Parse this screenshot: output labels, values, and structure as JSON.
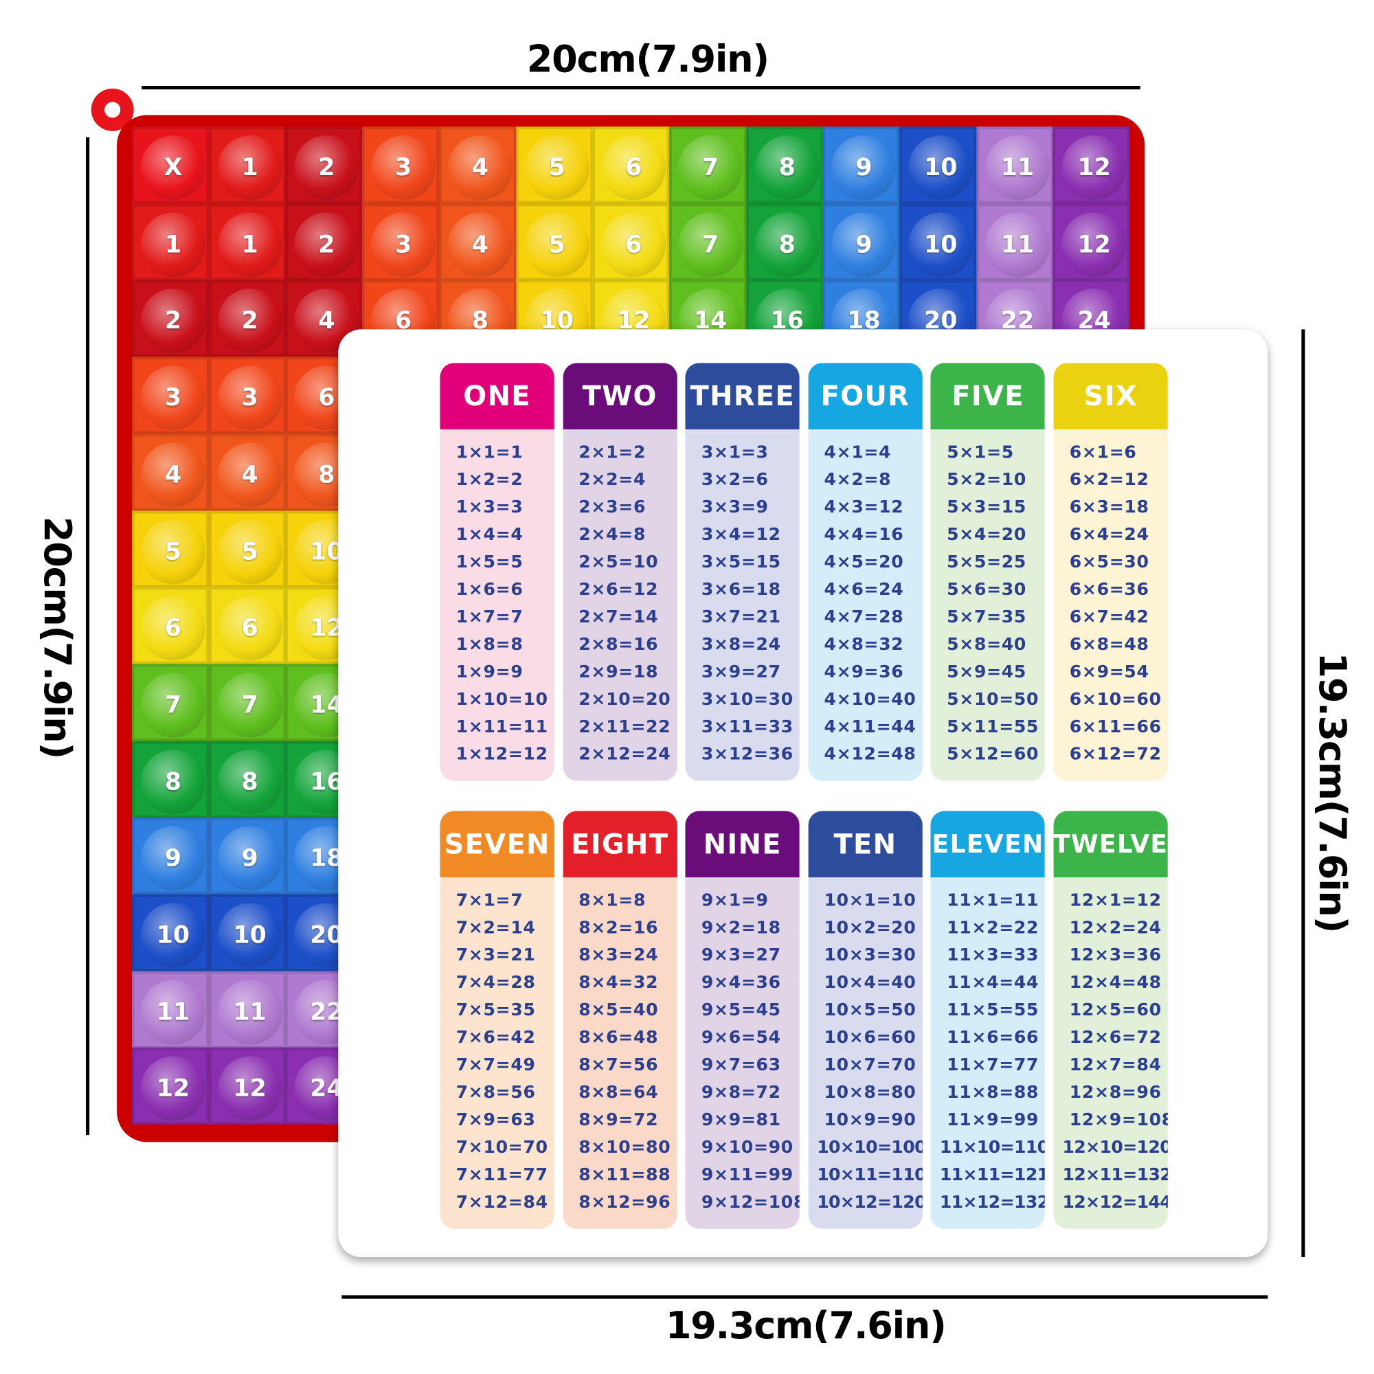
{
  "dimensions": {
    "top": "20cm(7.9in)",
    "left": "20cm(7.9in)",
    "right": "19.3cm(7.6in)",
    "bottom": "19.3cm(7.6in)"
  },
  "board": {
    "palette": [
      "#e8141c",
      "#e11a1a",
      "#c8101a",
      "#f0461a",
      "#f0561c",
      "#f5d20a",
      "#f3dc12",
      "#5fbf1e",
      "#14a33a",
      "#2f7fe0",
      "#1d4fc8",
      "#b07ad0",
      "#8a2fb0"
    ],
    "rows": [
      [
        "X",
        "1",
        "2",
        "3",
        "4",
        "5",
        "6",
        "7",
        "8",
        "9",
        "10",
        "11",
        "12"
      ],
      [
        "1",
        "1",
        "2",
        "3",
        "4",
        "5",
        "6",
        "7",
        "8",
        "9",
        "10",
        "11",
        "12"
      ],
      [
        "2",
        "2",
        "4",
        "6",
        "8",
        "10",
        "12",
        "14",
        "16",
        "18",
        "20",
        "22",
        "24"
      ],
      [
        "3",
        "3",
        "6"
      ],
      [
        "4",
        "4",
        "8"
      ],
      [
        "5",
        "5",
        "10"
      ],
      [
        "6",
        "6",
        "12"
      ],
      [
        "7",
        "7",
        "14"
      ],
      [
        "8",
        "8",
        "16"
      ],
      [
        "9",
        "9",
        "18"
      ],
      [
        "10",
        "10",
        "20"
      ],
      [
        "11",
        "11",
        "22"
      ],
      [
        "12",
        "12",
        "24"
      ]
    ]
  },
  "tables": [
    {
      "title": "ONE",
      "color": "#e2007a",
      "bg": "#fadce6",
      "rows": [
        "1×1=1",
        "1×2=2",
        "1×3=3",
        "1×4=4",
        "1×5=5",
        "1×6=6",
        "1×7=7",
        "1×8=8",
        "1×9=9",
        "1×10=10",
        "1×11=11",
        "1×12=12"
      ]
    },
    {
      "title": "TWO",
      "color": "#6a0c7a",
      "bg": "#e2d4e7",
      "rows": [
        "2×1=2",
        "2×2=4",
        "2×3=6",
        "2×4=8",
        "2×5=10",
        "2×6=12",
        "2×7=14",
        "2×8=16",
        "2×9=18",
        "2×10=20",
        "2×11=22",
        "2×12=24"
      ]
    },
    {
      "title": "THREE",
      "color": "#2e4c9c",
      "bg": "#d9dcee",
      "rows": [
        "3×1=3",
        "3×2=6",
        "3×3=9",
        "3×4=12",
        "3×5=15",
        "3×6=18",
        "3×7=21",
        "3×8=24",
        "3×9=27",
        "3×10=30",
        "3×11=33",
        "3×12=36"
      ]
    },
    {
      "title": "FOUR",
      "color": "#16a7e2",
      "bg": "#d5ecf9",
      "rows": [
        "4×1=4",
        "4×2=8",
        "4×3=12",
        "4×4=16",
        "4×5=20",
        "4×6=24",
        "4×7=28",
        "4×8=32",
        "4×9=36",
        "4×10=40",
        "4×11=44",
        "4×12=48"
      ]
    },
    {
      "title": "FIVE",
      "color": "#3cb44a",
      "bg": "#e2f0da",
      "rows": [
        "5×1=5",
        "5×2=10",
        "5×3=15",
        "5×4=20",
        "5×5=25",
        "5×6=30",
        "5×7=35",
        "5×8=40",
        "5×9=45",
        "5×10=50",
        "5×11=55",
        "5×12=60"
      ]
    },
    {
      "title": "SIX",
      "color": "#ebd210",
      "bg": "#fdf4d6",
      "rows": [
        "6×1=6",
        "6×2=12",
        "6×3=18",
        "6×4=24",
        "6×5=30",
        "6×6=36",
        "6×7=42",
        "6×8=48",
        "6×9=54",
        "6×10=60",
        "6×11=66",
        "6×12=72"
      ]
    },
    {
      "title": "SEVEN",
      "color": "#ef8a25",
      "bg": "#fde4cf",
      "rows": [
        "7×1=7",
        "7×2=14",
        "7×3=21",
        "7×4=28",
        "7×5=35",
        "7×6=42",
        "7×7=49",
        "7×8=56",
        "7×9=63",
        "7×10=70",
        "7×11=77",
        "7×12=84"
      ]
    },
    {
      "title": "EIGHT",
      "color": "#e3202a",
      "bg": "#fbd9c9",
      "rows": [
        "8×1=8",
        "8×2=16",
        "8×3=24",
        "8×4=32",
        "8×5=40",
        "8×6=48",
        "8×7=56",
        "8×8=64",
        "8×9=72",
        "8×10=80",
        "8×11=88",
        "8×12=96"
      ]
    },
    {
      "title": "NINE",
      "color": "#6a0c7a",
      "bg": "#e2d4e7",
      "rows": [
        "9×1=9",
        "9×2=18",
        "9×3=27",
        "9×4=36",
        "9×5=45",
        "9×6=54",
        "9×7=63",
        "9×8=72",
        "9×9=81",
        "9×10=90",
        "9×11=99",
        "9×12=108"
      ]
    },
    {
      "title": "TEN",
      "color": "#2e4c9c",
      "bg": "#d9dcee",
      "rows": [
        "10×1=10",
        "10×2=20",
        "10×3=30",
        "10×4=40",
        "10×5=50",
        "10×6=60",
        "10×7=70",
        "10×8=80",
        "10×9=90",
        "10×10=100",
        "10×11=110",
        "10×12=120"
      ]
    },
    {
      "title": "ELEVEN",
      "color": "#16a7e2",
      "bg": "#d5ecf9",
      "rows": [
        "11×1=11",
        "11×2=22",
        "11×3=33",
        "11×4=44",
        "11×5=55",
        "11×6=66",
        "11×7=77",
        "11×8=88",
        "11×9=99",
        "11×10=110",
        "11×11=121",
        "11×12=132"
      ]
    },
    {
      "title": "TWELVE",
      "color": "#3cb44a",
      "bg": "#e2f0da",
      "rows": [
        "12×1=12",
        "12×2=24",
        "12×3=36",
        "12×4=48",
        "12×5=60",
        "12×6=72",
        "12×7=84",
        "12×8=96",
        "12×9=108",
        "12×10=120",
        "12×11=132",
        "12×12=144"
      ]
    }
  ]
}
